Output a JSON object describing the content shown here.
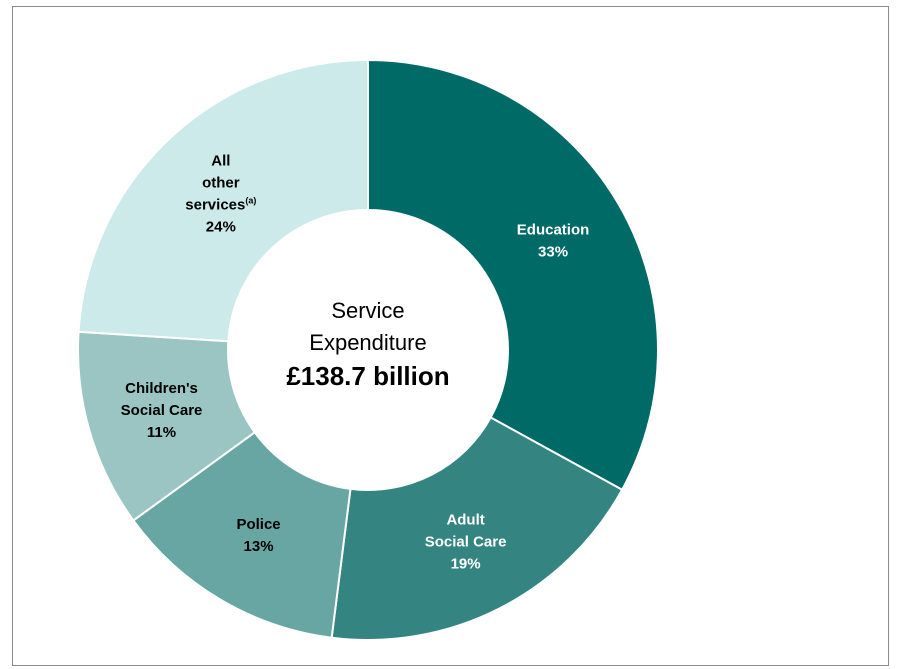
{
  "chart_data": {
    "type": "pie",
    "center": {
      "line1": "Service",
      "line2": "Expenditure",
      "line3": "£138.7 billion"
    },
    "slices": [
      {
        "name": "Education",
        "label_lines": [
          "Education"
        ],
        "value": 33,
        "value_label": "33%",
        "color": "#006a66",
        "text_color": "#ffffff"
      },
      {
        "name": "Adult Social Care",
        "label_lines": [
          "Adult",
          "Social Care"
        ],
        "value": 19,
        "value_label": "19%",
        "color": "#348582",
        "text_color": "#ffffff"
      },
      {
        "name": "Police",
        "label_lines": [
          "Police"
        ],
        "value": 13,
        "value_label": "13%",
        "color": "#67a6a3",
        "text_color": "#000000"
      },
      {
        "name": "Children's Social Care",
        "label_lines": [
          "Children's",
          "Social Care"
        ],
        "value": 11,
        "value_label": "11%",
        "color": "#9ac5c3",
        "text_color": "#000000"
      },
      {
        "name": "All other services",
        "label_lines": [
          "All",
          "other",
          "services"
        ],
        "superscript": "(a)",
        "value": 24,
        "value_label": "24%",
        "color": "#cceae9",
        "text_color": "#000000"
      }
    ]
  }
}
